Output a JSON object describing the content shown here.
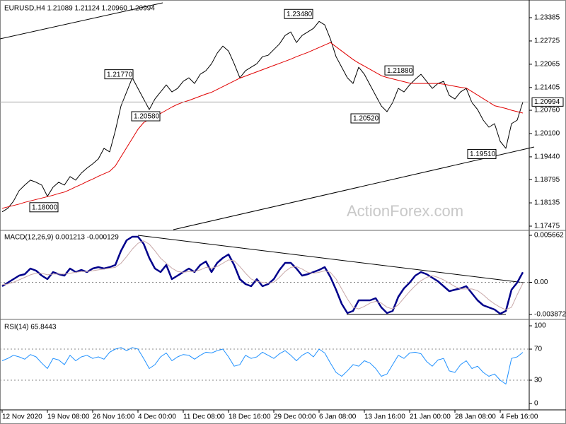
{
  "chart_data": [
    {
      "type": "line",
      "title": "EURUSD,H4  1.21089 1.21124 1.20960 1.20994",
      "watermark": "ActionForex.com",
      "categories": [
        "12 Nov 2020",
        null,
        null,
        null,
        null,
        null,
        null,
        null,
        "19 Nov 08:00",
        null,
        null,
        null,
        null,
        null,
        null,
        null,
        "26 Nov 16:00",
        null,
        null,
        null,
        null,
        null,
        null,
        null,
        "4 Dec 00:00",
        null,
        null,
        null,
        null,
        null,
        null,
        null,
        "11 Dec 08:00",
        null,
        null,
        null,
        null,
        null,
        null,
        null,
        "18 Dec 16:00",
        null,
        null,
        null,
        null,
        null,
        null,
        null,
        "29 Dec 00:00",
        null,
        null,
        null,
        null,
        null,
        null,
        null,
        "6 Jan 08:00",
        null,
        null,
        null,
        null,
        null,
        null,
        null,
        "13 Jan 16:00",
        null,
        null,
        null,
        null,
        null,
        null,
        null,
        "21 Jan 00:00",
        null,
        null,
        null,
        null,
        null,
        null,
        null,
        "28 Jan 08:00",
        null,
        null,
        null,
        null,
        null,
        null,
        null,
        "4 Feb 16:00",
        null,
        null,
        null,
        null
      ],
      "series": [
        {
          "name": "EURUSD",
          "color": "#000000",
          "values": [
            1.1788,
            1.1798,
            1.1818,
            1.1848,
            1.1864,
            1.1878,
            1.1872,
            1.1864,
            1.1832,
            1.1858,
            1.1872,
            1.1864,
            1.1888,
            1.1878,
            1.1898,
            1.1912,
            1.1924,
            1.1938,
            1.1968,
            1.1958,
            1.2018,
            1.2088,
            1.2128,
            1.2168,
            1.2138,
            1.2108,
            1.2078,
            1.2108,
            1.2128,
            1.2148,
            1.2128,
            1.2138,
            1.2158,
            1.2168,
            1.2152,
            1.2178,
            1.2188,
            1.2208,
            1.2238,
            1.2258,
            1.2244,
            1.2208,
            1.2168,
            1.2188,
            1.2198,
            1.2208,
            1.2228,
            1.2232,
            1.2248,
            1.2264,
            1.2288,
            1.2298,
            1.2268,
            1.2288,
            1.2298,
            1.2308,
            1.2328,
            1.2318,
            1.2278,
            1.2228,
            1.2198,
            1.2168,
            1.2152,
            1.2198,
            1.2178,
            1.2148,
            1.2118,
            1.2088,
            1.2072,
            1.2098,
            1.2138,
            1.2128,
            1.2148,
            1.2164,
            1.2178,
            1.2158,
            1.2138,
            1.2152,
            1.2158,
            1.2118,
            1.2108,
            1.2128,
            1.2138,
            1.2098,
            1.2078,
            1.2048,
            1.2028,
            1.2038,
            1.1988,
            1.1968,
            1.2038,
            1.2048,
            1.20994
          ]
        },
        {
          "name": "MA",
          "color": "#e00000",
          "values": [
            1.1798,
            1.1802,
            1.1806,
            1.181,
            1.1815,
            1.1819,
            1.1823,
            1.1827,
            1.1831,
            1.1835,
            1.184,
            1.1844,
            1.1851,
            1.1859,
            1.1866,
            1.1874,
            1.1881,
            1.1889,
            1.1896,
            1.1903,
            1.1918,
            1.1944,
            1.197,
            1.1996,
            1.2022,
            1.2041,
            1.205,
            1.2059,
            1.2067,
            1.2076,
            1.2085,
            1.2093,
            1.2099,
            1.2104,
            1.211,
            1.2116,
            1.2122,
            1.2127,
            1.2135,
            1.2143,
            1.2151,
            1.2159,
            1.2167,
            1.2173,
            1.2179,
            1.2185,
            1.2191,
            1.2197,
            1.2203,
            1.2209,
            1.2215,
            1.2221,
            1.2228,
            1.2234,
            1.224,
            1.2247,
            1.2254,
            1.2261,
            1.2268,
            1.2256,
            1.2244,
            1.2232,
            1.222,
            1.221,
            1.2201,
            1.2192,
            1.2183,
            1.2174,
            1.2169,
            1.2165,
            1.2161,
            1.2157,
            1.2153,
            1.2152,
            1.2152,
            1.2152,
            1.2152,
            1.2152,
            1.215,
            1.2147,
            1.2144,
            1.2141,
            1.2139,
            1.2129,
            1.2119,
            1.2109,
            1.2099,
            1.2089,
            1.2085,
            1.2081,
            1.2076,
            1.2072,
            1.2068
          ]
        }
      ],
      "current_price": 1.20994,
      "annotations": [
        {
          "value": 1.2348,
          "label": "1.23480"
        },
        {
          "value": 1.2177,
          "label": "1.21770"
        },
        {
          "value": 1.2058,
          "label": "1.20580"
        },
        {
          "value": 1.2052,
          "label": "1.20520"
        },
        {
          "value": 1.2188,
          "label": "1.21880"
        },
        {
          "value": 1.1951,
          "label": "1.19510"
        },
        {
          "value": 1.18,
          "label": "1.18000"
        }
      ],
      "ylim": [
        1.17375,
        1.23806
      ],
      "yticks": [
        1.23385,
        1.22725,
        1.22065,
        1.21405,
        {
          "value": 1.2076,
          "label": "1.20760"
        },
        {
          "value": 1.201,
          "label": "1.20100"
        },
        {
          "value": 1.1944,
          "label": "1.19440"
        },
        1.18795,
        1.18135,
        1.17475
      ],
      "grid": false
    },
    {
      "type": "line",
      "title": "MACD(12,26,9) 0.001213 -0.000129",
      "series": [
        {
          "name": "MACD",
          "color": "#00008b",
          "values": [
            -0.000468,
            -4.3e-05,
            0.000383,
            0.000808,
            0.000979,
            0.001659,
            0.001404,
            0.000808,
            0.000383,
            0.001234,
            0.000979,
            0.000808,
            0.001659,
            0.001234,
            0.001489,
            0.001234,
            0.001659,
            0.00183,
            0.001659,
            0.00183,
            0.002085,
            0.003787,
            0.005063,
            0.005489,
            0.005489,
            0.004638,
            0.002936,
            0.001659,
            0.001234,
            0.002085,
            0.000383,
            0.000808,
            0.001234,
            0.001659,
            0.001234,
            0.002085,
            0.00251,
            0.001234,
            0.00234,
            0.002936,
            0.003361,
            0.002085,
            0.000383,
            -0.000213,
            -0.000468,
            0.000383,
            -0.000468,
            -0.000213,
            0.000383,
            0.001489,
            0.00234,
            0.00234,
            0.001659,
            0.000808,
            0.000979,
            0.001234,
            0.001489,
            0.00183,
            0.000638,
            -0.000894,
            -0.002596,
            -0.003702,
            -0.003447,
            -0.00217,
            -0.00217,
            -0.00217,
            -0.001915,
            -0.003021,
            -0.003702,
            -0.003447,
            -0.001745,
            -0.000723,
            -4.3e-05,
            0.000808,
            0.001234,
            0.000979,
            0.000553,
            0.000128,
            -0.000468,
            -0.001064,
            -0.000894,
            -0.000723,
            -0.000468,
            -0.001319,
            -0.00217,
            -0.002766,
            -0.003021,
            -0.003276,
            -0.003787,
            -0.003447,
            -0.000894,
            -4.3e-05,
            0.001213
          ]
        },
        {
          "name": "Signal",
          "color": "#c8a8a8",
          "values": [
            -0.0003,
            -0.0002,
            0.0,
            0.0003,
            0.0006,
            0.0009,
            0.0011,
            0.0011,
            0.0009,
            0.001,
            0.001,
            0.001,
            0.0011,
            0.0012,
            0.0013,
            0.0013,
            0.0014,
            0.0015,
            0.0016,
            0.0017,
            0.0018,
            0.0023,
            0.0031,
            0.004,
            0.0047,
            0.005,
            0.0046,
            0.0038,
            0.0029,
            0.0023,
            0.0017,
            0.0013,
            0.0012,
            0.0013,
            0.0013,
            0.0015,
            0.0018,
            0.0017,
            0.0019,
            0.0023,
            0.0027,
            0.0026,
            0.0019,
            0.0011,
            0.0004,
            0.0001,
            0.0,
            -0.0001,
            0.0,
            0.0006,
            0.0013,
            0.0018,
            0.0019,
            0.0016,
            0.0012,
            0.0011,
            0.0012,
            0.0014,
            0.0012,
            0.0004,
            -0.0008,
            -0.002,
            -0.003,
            -0.0032,
            -0.0029,
            -0.0025,
            -0.0023,
            -0.0025,
            -0.003,
            -0.0032,
            -0.0027,
            -0.0019,
            -0.0011,
            -0.0004,
            0.0002,
            0.0006,
            0.0008,
            0.0006,
            0.0003,
            -0.0001,
            -0.0005,
            -0.0008,
            -0.0008,
            -0.0008,
            -0.001,
            -0.0015,
            -0.0021,
            -0.0026,
            -0.003,
            -0.0033,
            -0.003,
            -0.0015,
            -0.000129
          ]
        }
      ],
      "ylim": [
        -0.004298,
        0.006173
      ],
      "yticks": [
        0.005662,
        {
          "value": 0,
          "label": "0.00"
        },
        -0.003872
      ],
      "grid": true
    },
    {
      "type": "line",
      "title": "RSI(14) 65.8443",
      "series": [
        {
          "name": "RSI",
          "color": "#1e90ff",
          "values": [
            55,
            58,
            62,
            60,
            57,
            63,
            60,
            52,
            45,
            58,
            56,
            50,
            62,
            55,
            60,
            62,
            58,
            60,
            57,
            66,
            70,
            72,
            68,
            72,
            70,
            58,
            45,
            50,
            60,
            65,
            55,
            60,
            63,
            62,
            57,
            62,
            66,
            65,
            68,
            70,
            60,
            48,
            50,
            62,
            58,
            60,
            66,
            62,
            58,
            64,
            68,
            62,
            55,
            62,
            66,
            60,
            70,
            65,
            52,
            40,
            35,
            42,
            50,
            48,
            55,
            52,
            45,
            35,
            38,
            50,
            62,
            58,
            65,
            66,
            64,
            54,
            48,
            56,
            58,
            42,
            40,
            50,
            55,
            45,
            48,
            40,
            35,
            38,
            30,
            25,
            58,
            60,
            65.8443
          ]
        }
      ],
      "ylim": [
        -8.2,
        105.5
      ],
      "yticks": [
        100,
        70,
        30,
        0
      ],
      "grid": true
    }
  ]
}
